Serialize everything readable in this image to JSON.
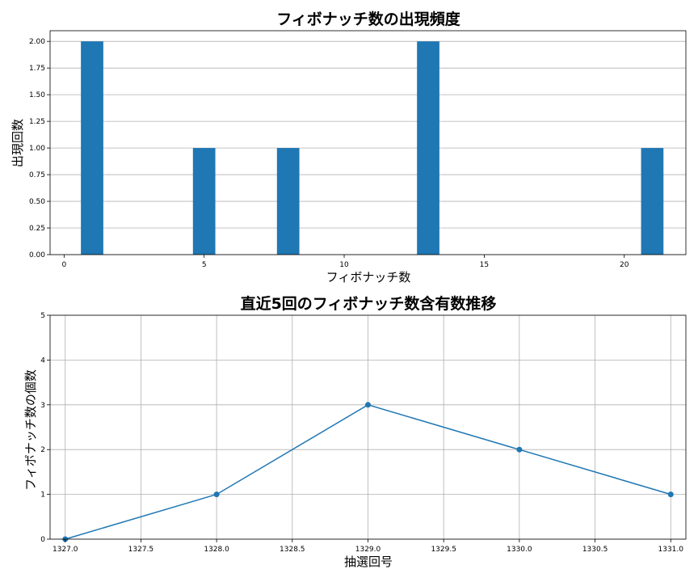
{
  "chart_data": [
    {
      "type": "bar",
      "title": "フィボナッチ数の出現頻度",
      "xlabel": "フィボナッチ数",
      "ylabel": "出現回数",
      "x": [
        1,
        5,
        8,
        13,
        21
      ],
      "values": [
        2,
        1,
        1,
        2,
        1
      ],
      "xlim": [
        -0.5,
        22.2
      ],
      "ylim": [
        0,
        2.1
      ],
      "xticks": [
        0,
        5,
        10,
        15,
        20
      ],
      "xtick_labels": [
        "0",
        "5",
        "10",
        "15",
        "20"
      ],
      "yticks": [
        0,
        0.25,
        0.5,
        0.75,
        1.0,
        1.25,
        1.5,
        1.75,
        2.0
      ],
      "ytick_labels": [
        "0.00",
        "0.25",
        "0.50",
        "0.75",
        "1.00",
        "1.25",
        "1.50",
        "1.75",
        "2.00"
      ],
      "grid": "y-axis only",
      "color": "#1f77b4"
    },
    {
      "type": "line",
      "title": "直近5回のフィボナッチ数含有数推移",
      "xlabel": "抽選回号",
      "ylabel": "フィボナッチ数の個数",
      "x": [
        1327,
        1328,
        1329,
        1330,
        1331
      ],
      "values": [
        0,
        1,
        3,
        2,
        1
      ],
      "xlim": [
        1326.9,
        1331.1
      ],
      "ylim": [
        0,
        5
      ],
      "xticks": [
        1327.0,
        1327.5,
        1328.0,
        1328.5,
        1329.0,
        1329.5,
        1330.0,
        1330.5,
        1331.0
      ],
      "xtick_labels": [
        "1327.0",
        "1327.5",
        "1328.0",
        "1328.5",
        "1329.0",
        "1329.5",
        "1330.0",
        "1330.5",
        "1331.0"
      ],
      "yticks": [
        0,
        1,
        2,
        3,
        4,
        5
      ],
      "ytick_labels": [
        "0",
        "1",
        "2",
        "3",
        "4",
        "5"
      ],
      "grid": "both",
      "marker": "circle",
      "color": "#1f77b4"
    }
  ]
}
